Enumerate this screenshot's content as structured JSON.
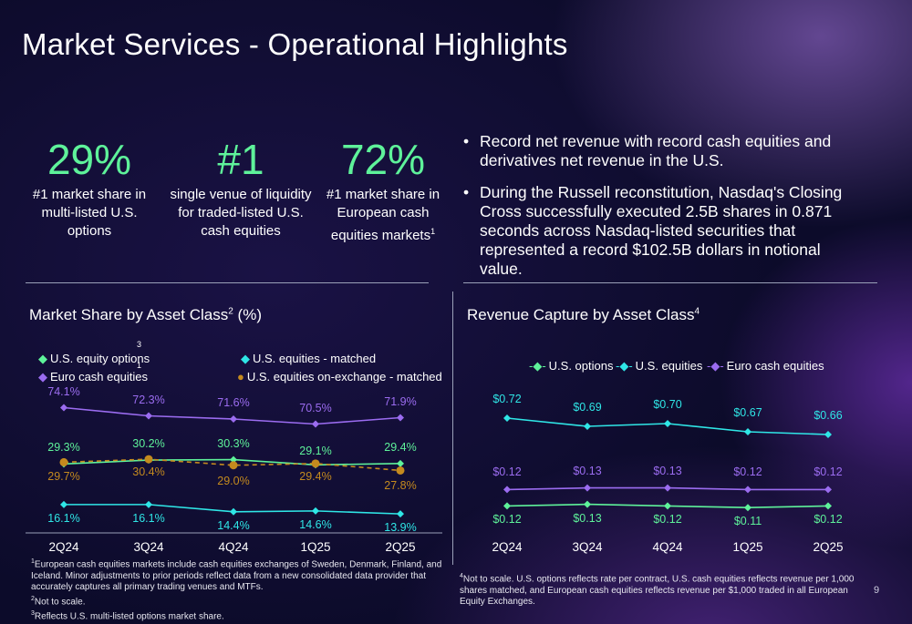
{
  "title": "Market Services - Operational Highlights",
  "stats": [
    {
      "value": "29%",
      "desc": "#1 market share in multi-listed U.S. options",
      "sup": ""
    },
    {
      "value": "#1",
      "desc": "single venue of liquidity for traded-listed U.S. cash equities",
      "sup": ""
    },
    {
      "value": "72%",
      "desc": "#1 market share in European cash equities markets",
      "sup": "1"
    }
  ],
  "bullets": [
    "Record net revenue with record cash equities and derivatives net revenue in the U.S.",
    "During the Russell reconstitution, Nasdaq's Closing Cross successfully executed 2.5B shares in 0.871 seconds across Nasdaq-listed securities that represented a record $102.5B dollars in notional value."
  ],
  "colors": {
    "green": "#5ef29a",
    "cyan": "#2fe6e6",
    "purple": "#9b6cf0",
    "gold": "#c48a1e"
  },
  "chart_data": [
    {
      "type": "line",
      "title": "Market Share by Asset Class",
      "title_sup": "2",
      "title_suffix": " (%)",
      "categories": [
        "2Q24",
        "3Q24",
        "4Q24",
        "1Q25",
        "2Q25"
      ],
      "legend_sup": "3",
      "legend_sup2": "1",
      "series": [
        {
          "name": "U.S. equity options",
          "key": "green",
          "values": [
            29.3,
            30.2,
            30.3,
            29.1,
            29.4
          ],
          "labels": [
            "29.3%",
            "30.2%",
            "30.3%",
            "29.1%",
            "29.4%"
          ]
        },
        {
          "name": "U.S. equities - matched",
          "key": "cyan",
          "values": [
            16.1,
            16.1,
            14.4,
            14.6,
            13.9
          ],
          "labels": [
            "16.1%",
            "16.1%",
            "14.4%",
            "14.6%",
            "13.9%"
          ]
        },
        {
          "name": "Euro cash equities",
          "key": "purple",
          "values": [
            74.1,
            72.3,
            71.6,
            70.5,
            71.9
          ],
          "labels": [
            "74.1%",
            "72.3%",
            "71.6%",
            "70.5%",
            "71.9%"
          ]
        },
        {
          "name": "U.S. equities on-exchange - matched",
          "key": "gold",
          "values": [
            29.7,
            30.4,
            29.0,
            29.4,
            27.8
          ],
          "labels": [
            "29.7%",
            "30.4%",
            "29.0%",
            "29.4%",
            "27.8%"
          ]
        }
      ]
    },
    {
      "type": "line",
      "title": "Revenue Capture by Asset Class",
      "title_sup": "4",
      "categories": [
        "2Q24",
        "3Q24",
        "4Q24",
        "1Q25",
        "2Q25"
      ],
      "series": [
        {
          "name": "U.S. options",
          "key": "green",
          "values": [
            0.12,
            0.13,
            0.12,
            0.11,
            0.12
          ],
          "labels": [
            "$0.12",
            "$0.13",
            "$0.12",
            "$0.11",
            "$0.12"
          ]
        },
        {
          "name": "U.S. equities",
          "key": "cyan",
          "values": [
            0.72,
            0.69,
            0.7,
            0.67,
            0.66
          ],
          "labels": [
            "$0.72",
            "$0.69",
            "$0.70",
            "$0.67",
            "$0.66"
          ]
        },
        {
          "name": "Euro cash equities",
          "key": "purple",
          "values": [
            0.12,
            0.13,
            0.13,
            0.12,
            0.12
          ],
          "labels": [
            "$0.12",
            "$0.13",
            "$0.13",
            "$0.12",
            "$0.12"
          ]
        }
      ]
    }
  ],
  "footnotes_left": [
    {
      "sup": "1",
      "text": "European cash equities markets include cash equities exchanges of Sweden, Denmark, Finland, and Iceland. Minor adjustments to prior periods reflect data from a new consolidated data provider that accurately captures all primary trading venues and MTFs."
    },
    {
      "sup": "2",
      "text": "Not to scale."
    },
    {
      "sup": "3",
      "text": "Reflects U.S. multi-listed options market share."
    }
  ],
  "footnote_right": {
    "sup": "4",
    "text": "Not to scale. U.S. options reflects rate per contract, U.S. cash equities reflects revenue per 1,000 shares matched, and European cash equities reflects revenue per $1,000 traded in all European Equity Exchanges."
  },
  "page_number": "9"
}
